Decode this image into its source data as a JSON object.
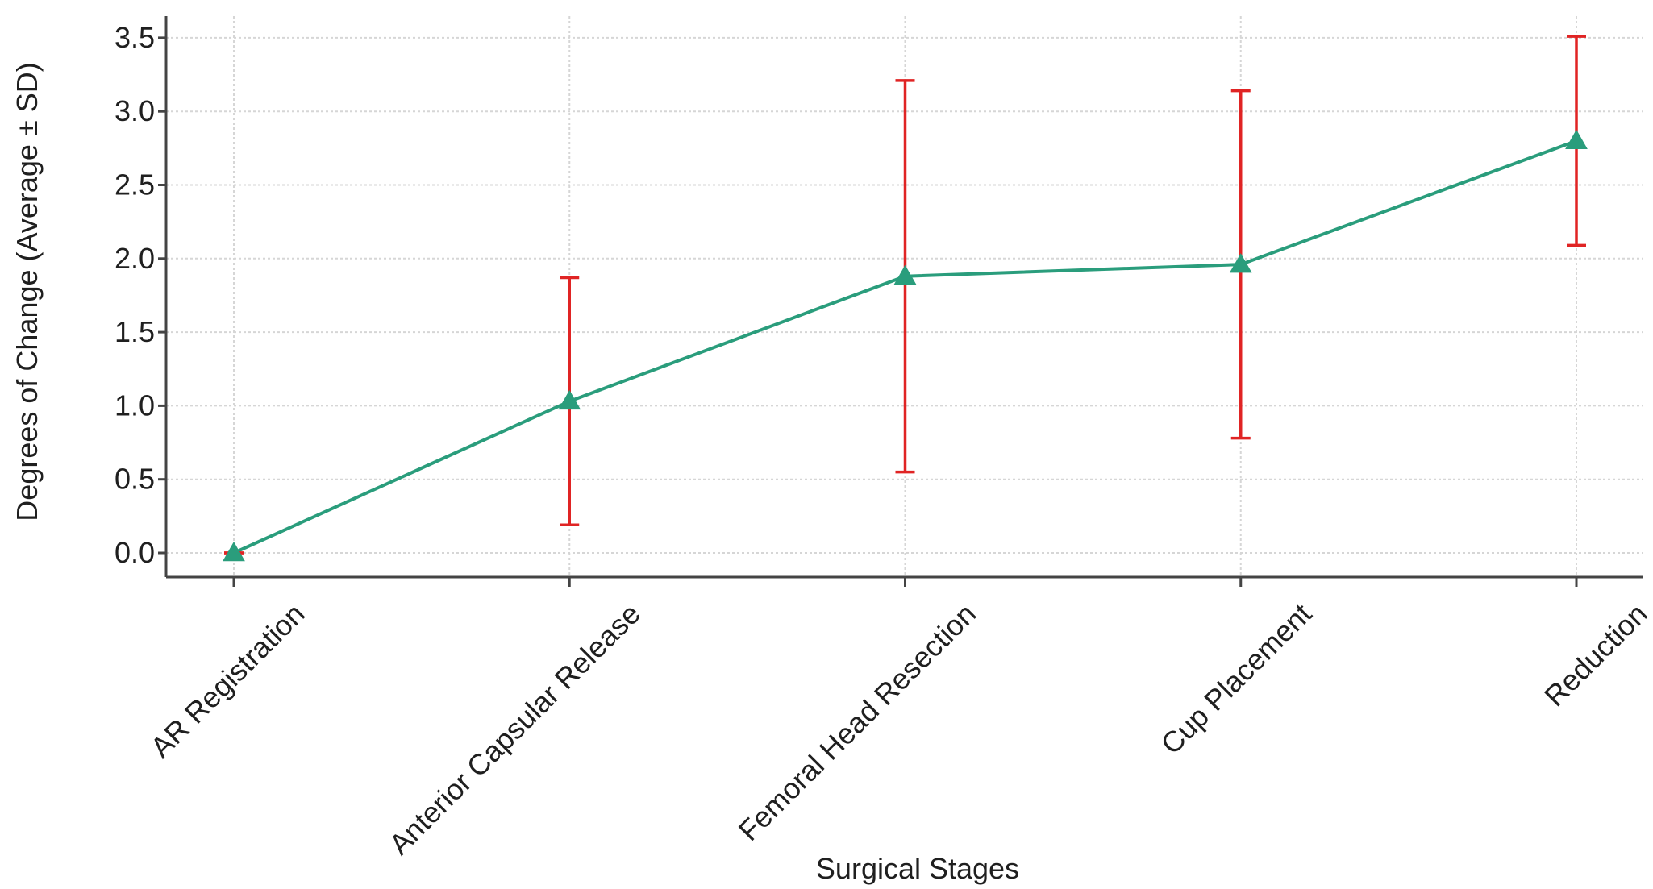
{
  "chart_data": {
    "type": "line",
    "title": "",
    "xlabel": "Surgical Stages",
    "ylabel": "Degrees of Change (Average ± SD)",
    "categories": [
      "AR Registration",
      "Anterior Capsular Release",
      "Femoral Head Resection",
      "Cup Placement",
      "Reduction"
    ],
    "series": [
      {
        "values": [
          0.0,
          1.03,
          1.88,
          1.96,
          2.8
        ],
        "sd": [
          0.0,
          0.84,
          1.33,
          1.18,
          0.71
        ],
        "color": "#2a9d7c",
        "marker": "triangle"
      }
    ],
    "error_bar_color": "#e02424",
    "ylim": [
      -0.15,
      3.6
    ],
    "yticks": [
      0.0,
      0.5,
      1.0,
      1.5,
      2.0,
      2.5,
      3.0,
      3.5
    ],
    "ytick_labels": [
      "0.0",
      "0.5",
      "1.0",
      "1.5",
      "2.0",
      "2.5",
      "3.0",
      "3.5"
    ],
    "grid": true,
    "legend": "none"
  }
}
